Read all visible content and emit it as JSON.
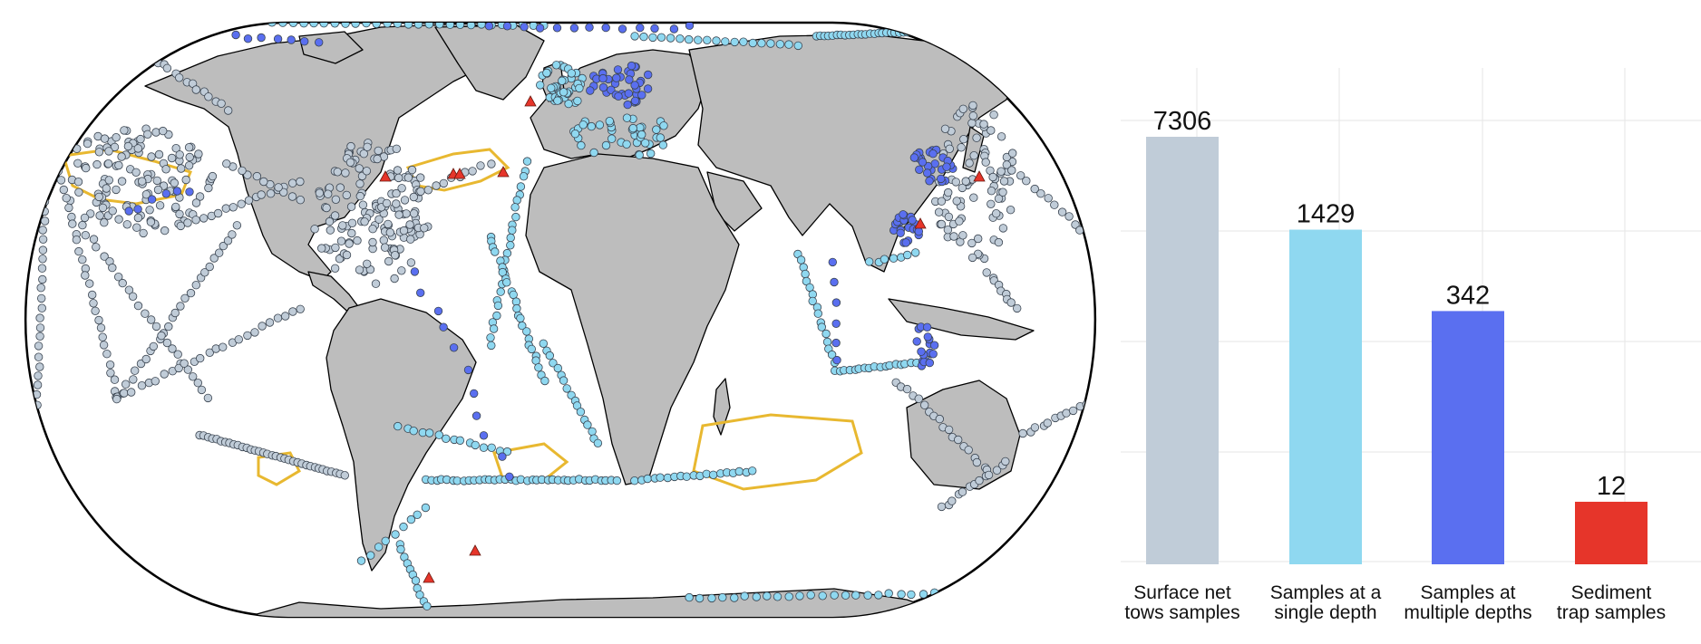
{
  "chart_data": {
    "type": "bar",
    "categories": [
      "Surface net\ntows samples",
      "Samples at a\nsingle depth",
      "Samples at\nmultiple depths",
      "Sediment\ntrap samples"
    ],
    "values": [
      7306,
      1429,
      342,
      12
    ],
    "value_labels": [
      "7306",
      "1429",
      "342",
      "12"
    ],
    "colors": [
      "#c0ccd8",
      "#8fd8f0",
      "#5a6ff0",
      "#e6352a"
    ],
    "axis_scale": "log",
    "grid": true,
    "title": "",
    "xlabel": "",
    "ylabel": ""
  },
  "map": {
    "projection": "Eckert IV-like world map",
    "land_color": "#bdbdbd",
    "border_color": "#000000",
    "region_outline_color": "#e8b830",
    "sample_types": [
      {
        "type": "surface-net-tows",
        "color": "#c0ccd8",
        "marker": "circle"
      },
      {
        "type": "single-depth",
        "color": "#8fd8f0",
        "marker": "circle"
      },
      {
        "type": "multiple-depths",
        "color": "#5a6ff0",
        "marker": "circle"
      },
      {
        "type": "sediment-trap",
        "color": "#e6352a",
        "marker": "triangle"
      }
    ]
  }
}
